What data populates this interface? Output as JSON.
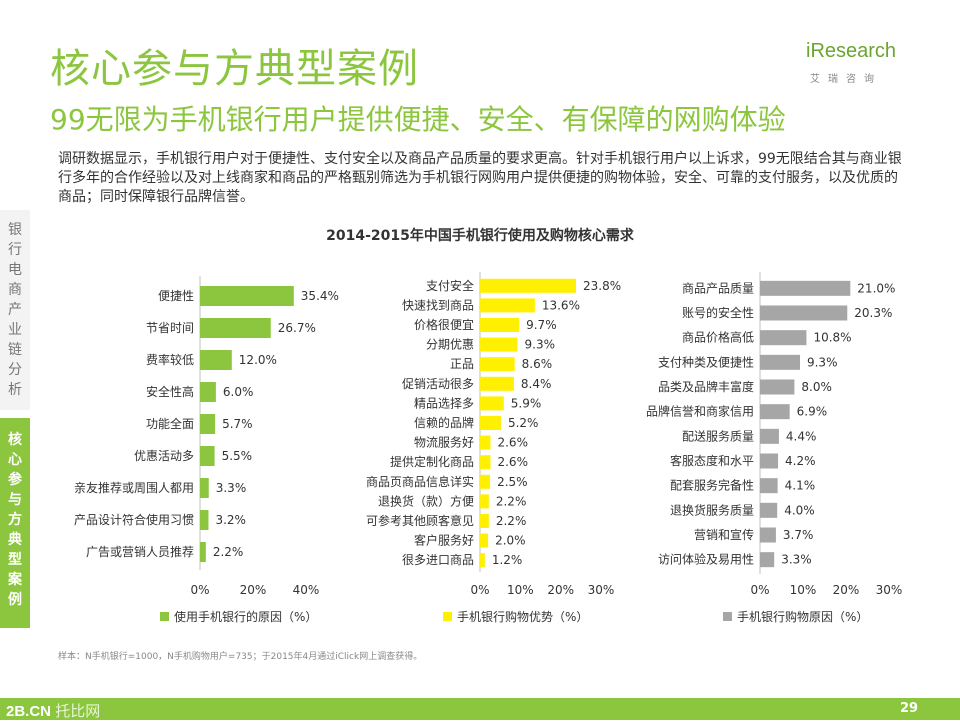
{
  "header": {
    "title": "核心参与方典型案例",
    "subtitle": "99无限为手机银行用户提供便捷、安全、有保障的网购体验",
    "logo_main": "iResearch",
    "logo_sub": "艾瑞咨询"
  },
  "intro": "调研数据显示，手机银行用户对于便捷性、支付安全以及商品产品质量的要求更高。针对手机银行用户以上诉求，99无限结合其与商业银行多年的合作经验以及对上线商家和商品的严格甄别筛选为手机银行网购用户提供便捷的购物体验，安全、可靠的支付服务，以及优质的商品；同时保障银行品牌信誉。",
  "sidebar": {
    "section_top": "银行电商产业链分析",
    "section_active": "核心参与方典型案例"
  },
  "footnote": "样本：N手机银行=1000，N手机购物用户=735；于2015年4月通过iClick网上调查获得。",
  "footer": {
    "logo_a": "2B.CN",
    "logo_b": "托比网",
    "page": "29"
  },
  "colors": {
    "green": "#8cc63f",
    "yellow": "#ffef00",
    "gray": "#a6a6a6"
  },
  "chart_data": {
    "type": "bar",
    "title": "2014-2015年中国手机银行使用及购物核心需求",
    "unit": "%",
    "panels": [
      {
        "name": "使用手机银行的原因（%）",
        "color": "#8cc63f",
        "xlim": [
          0,
          40
        ],
        "ticks": [
          "0%",
          "20%",
          "40%"
        ],
        "categories": [
          "便捷性",
          "节省时间",
          "费率较低",
          "安全性高",
          "功能全面",
          "优惠活动多",
          "亲友推荐或周围人都用",
          "产品设计符合使用习惯",
          "广告或营销人员推荐"
        ],
        "values": [
          35.4,
          26.7,
          12.0,
          6.0,
          5.7,
          5.5,
          3.3,
          3.2,
          2.2
        ],
        "labels": [
          "35.4%",
          "26.7%",
          "12.0%",
          "6.0%",
          "5.7%",
          "5.5%",
          "3.3%",
          "3.2%",
          "2.2%"
        ]
      },
      {
        "name": "手机银行购物优势（%）",
        "color": "#ffef00",
        "xlim": [
          0,
          30
        ],
        "ticks": [
          "0%",
          "10%",
          "20%",
          "30%"
        ],
        "categories": [
          "支付安全",
          "快速找到商品",
          "价格很便宜",
          "分期优惠",
          "正品",
          "促销活动很多",
          "精品选择多",
          "信赖的品牌",
          "物流服务好",
          "提供定制化商品",
          "商品页商品信息详实",
          "退换货（款）方便",
          "可参考其他顾客意见",
          "客户服务好",
          "很多进口商品"
        ],
        "values": [
          23.8,
          13.6,
          9.7,
          9.3,
          8.6,
          8.4,
          5.9,
          5.2,
          2.6,
          2.6,
          2.5,
          2.2,
          2.2,
          2.0,
          1.2
        ],
        "labels": [
          "23.8%",
          "13.6%",
          "9.7%",
          "9.3%",
          "8.6%",
          "8.4%",
          "5.9%",
          "5.2%",
          "2.6%",
          "2.6%",
          "2.5%",
          "2.2%",
          "2.2%",
          "2.0%",
          "1.2%"
        ]
      },
      {
        "name": "手机银行购物原因（%）",
        "color": "#a6a6a6",
        "xlim": [
          0,
          30
        ],
        "ticks": [
          "0%",
          "10%",
          "20%",
          "30%"
        ],
        "categories": [
          "商品产品质量",
          "账号的安全性",
          "商品价格高低",
          "支付种类及便捷性",
          "品类及品牌丰富度",
          "品牌信誉和商家信用",
          "配送服务质量",
          "客服态度和水平",
          "配套服务完备性",
          "退换货服务质量",
          "营销和宣传",
          "访问体验及易用性"
        ],
        "values": [
          21.0,
          20.3,
          10.8,
          9.3,
          8.0,
          6.9,
          4.4,
          4.2,
          4.1,
          4.0,
          3.7,
          3.3
        ],
        "labels": [
          "21.0%",
          "20.3%",
          "10.8%",
          "9.3%",
          "8.0%",
          "6.9%",
          "4.4%",
          "4.2%",
          "4.1%",
          "4.0%",
          "3.7%",
          "3.3%"
        ]
      }
    ]
  }
}
